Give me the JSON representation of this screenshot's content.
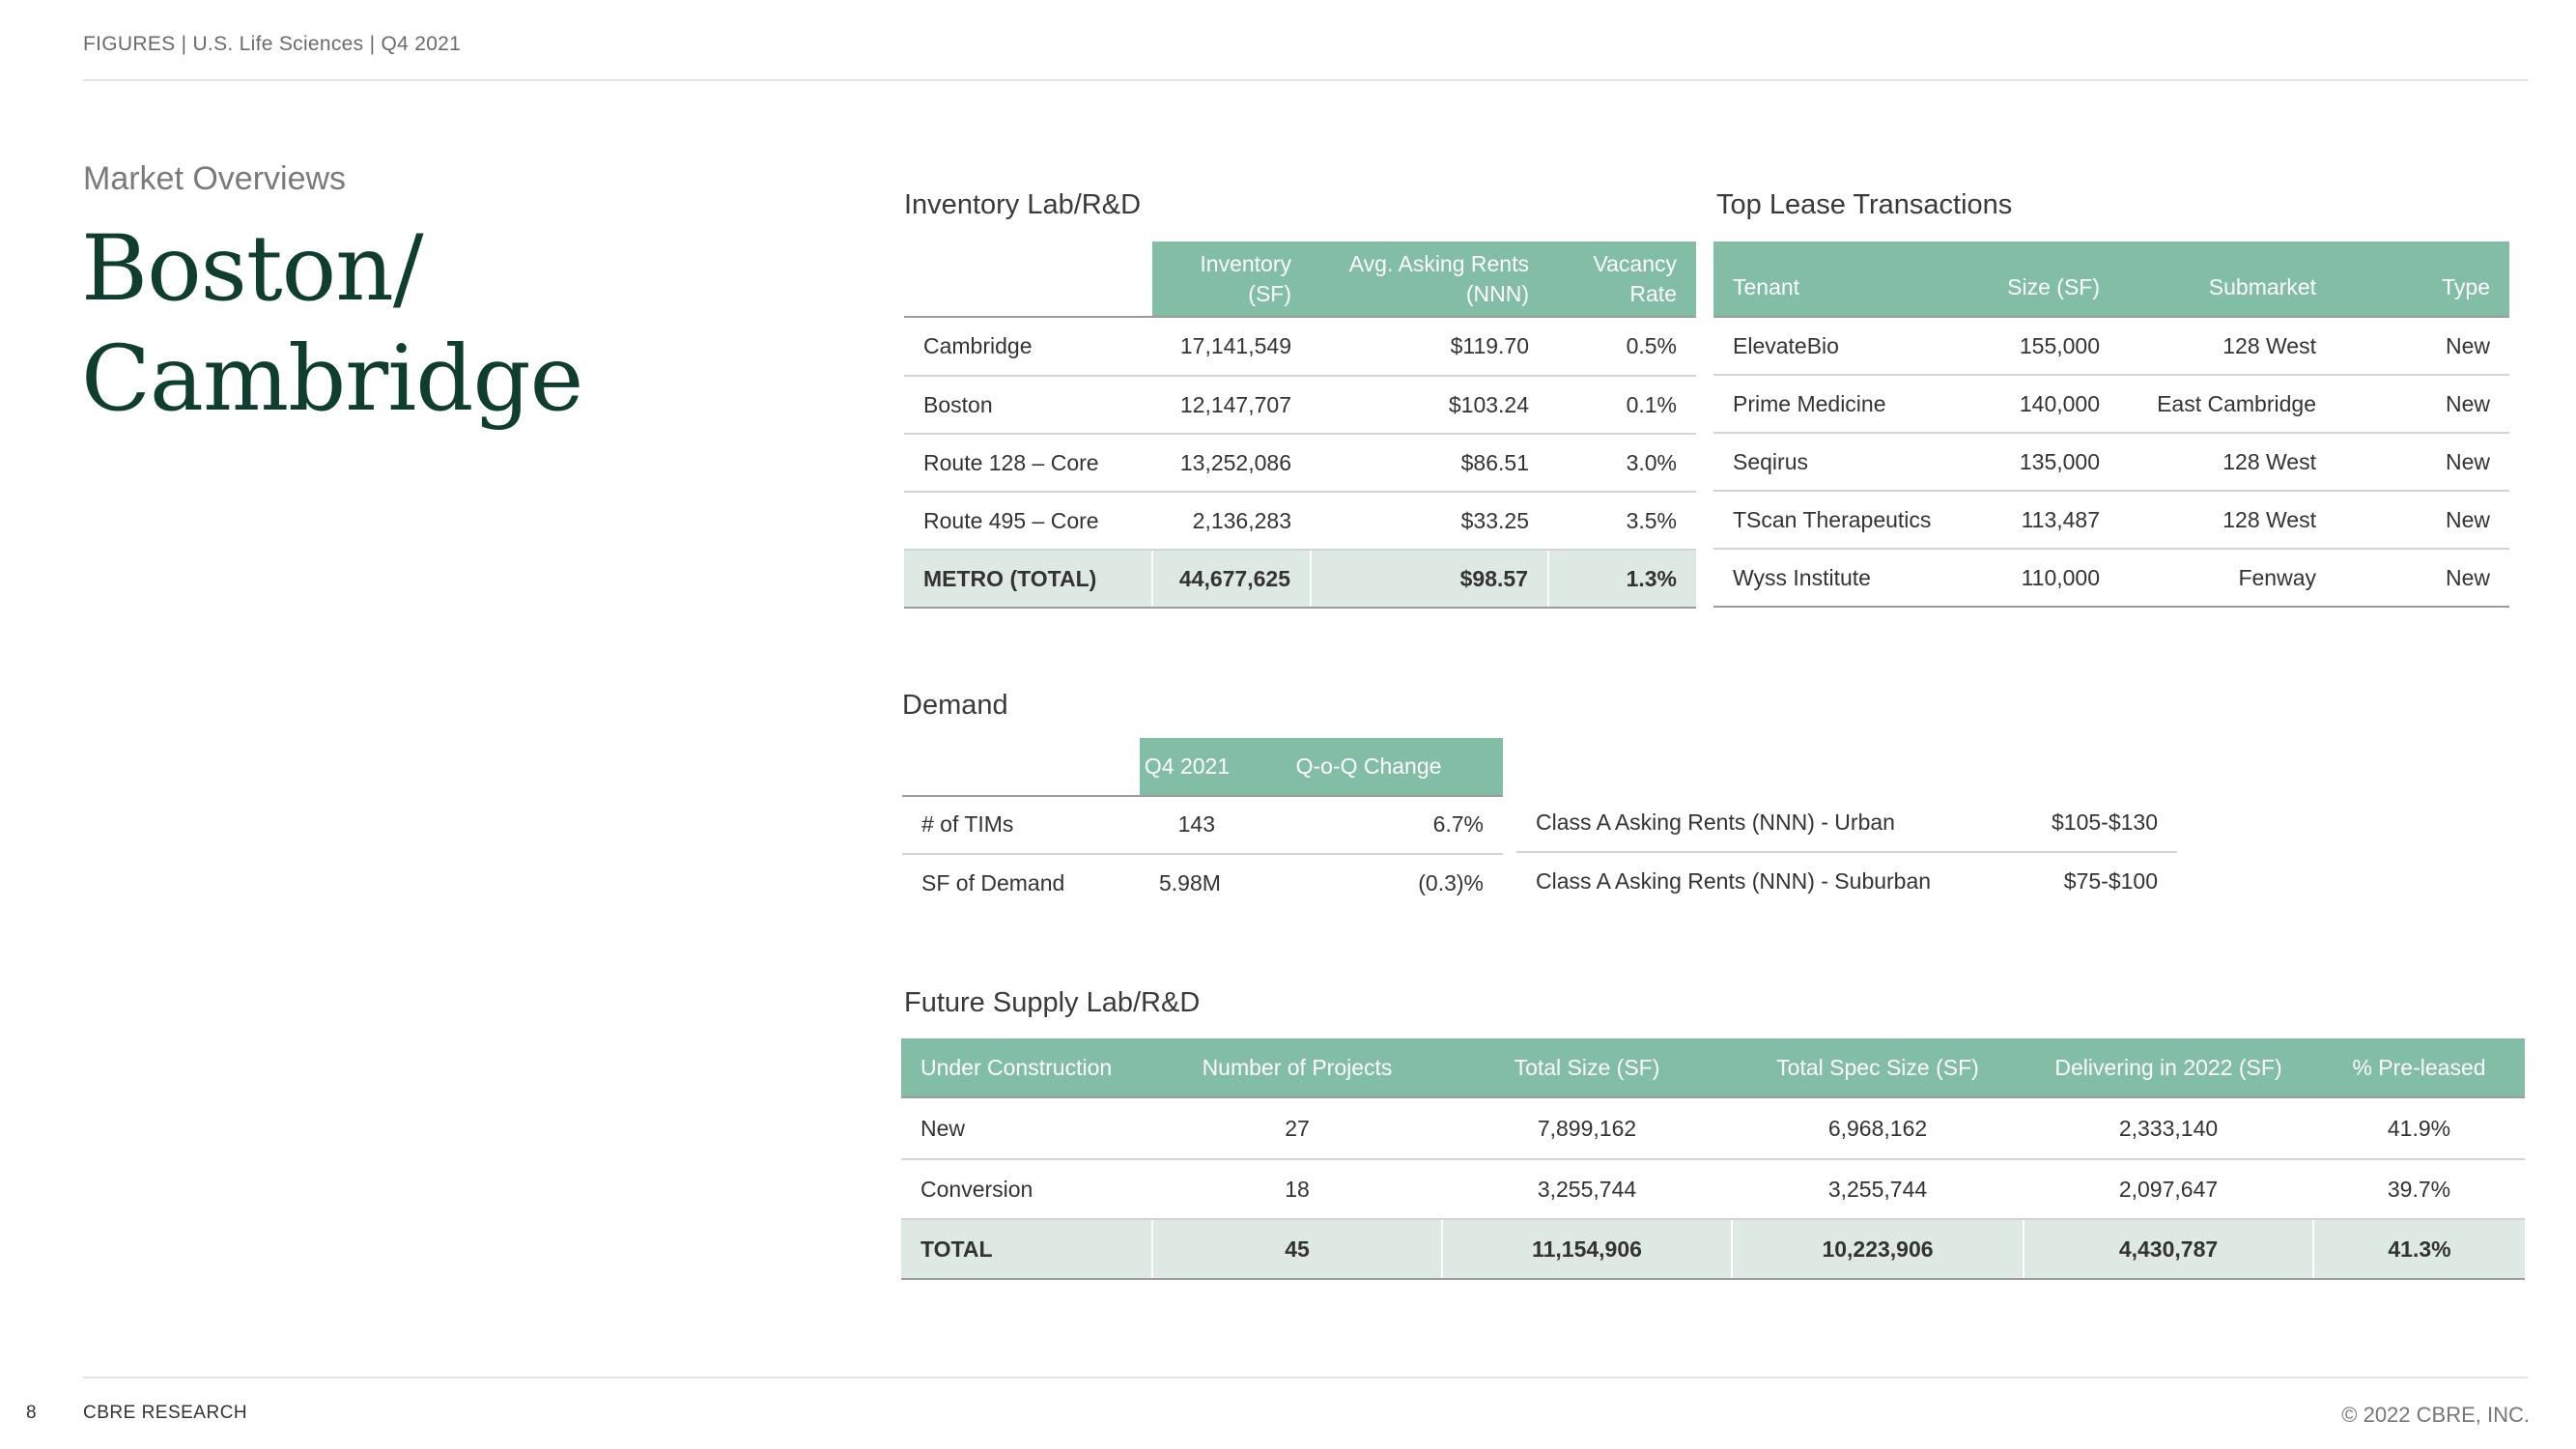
{
  "header": {
    "text": "FIGURES  |  U.S. Life Sciences  |  Q4 2021"
  },
  "page": {
    "kicker": "Market Overviews",
    "title_line1": "Boston/",
    "title_line2": "Cambridge"
  },
  "inventory": {
    "title": "Inventory Lab/R&D",
    "headers": [
      "",
      "Inventory (SF)",
      "Avg. Asking Rents (NNN)",
      "Vacancy Rate"
    ],
    "rows": [
      [
        "Cambridge",
        "17,141,549",
        "$119.70",
        "0.5%"
      ],
      [
        "Boston",
        "12,147,707",
        "$103.24",
        "0.1%"
      ],
      [
        "Route 128 – Core",
        "13,252,086",
        "$86.51",
        "3.0%"
      ],
      [
        "Route 495 – Core",
        "2,136,283",
        "$33.25",
        "3.5%"
      ]
    ],
    "total": [
      "METRO (TOTAL)",
      "44,677,625",
      "$98.57",
      "1.3%"
    ]
  },
  "leases": {
    "title": "Top Lease Transactions",
    "headers": [
      "Tenant",
      "Size (SF)",
      "Submarket",
      "Type"
    ],
    "rows": [
      [
        "ElevateBio",
        "155,000",
        "128 West",
        "New"
      ],
      [
        "Prime Medicine",
        "140,000",
        "East Cambridge",
        "New"
      ],
      [
        "Seqirus",
        "135,000",
        "128 West",
        "New"
      ],
      [
        "TScan Therapeutics",
        "113,487",
        "128 West",
        "New"
      ],
      [
        "Wyss Institute",
        "110,000",
        "Fenway",
        "New"
      ]
    ]
  },
  "demand": {
    "title": "Demand",
    "headers": [
      "",
      "Q4 2021",
      "Q-o-Q Change"
    ],
    "rows": [
      [
        "# of TIMs",
        "143",
        "6.7%"
      ],
      [
        "SF of Demand",
        "5.98M",
        "(0.3)%"
      ]
    ]
  },
  "rents": {
    "rows": [
      [
        "Class A Asking Rents (NNN) - Urban",
        "$105-$130"
      ],
      [
        "Class A Asking Rents (NNN) - Suburban",
        "$75-$100"
      ]
    ]
  },
  "supply": {
    "title": "Future Supply Lab/R&D",
    "headers": [
      "Under Construction",
      "Number of Projects",
      "Total Size (SF)",
      "Total Spec Size (SF)",
      "Delivering in 2022 (SF)",
      "% Pre-leased"
    ],
    "rows": [
      [
        "New",
        "27",
        "7,899,162",
        "6,968,162",
        "2,333,140",
        "41.9%"
      ],
      [
        "Conversion",
        "18",
        "3,255,744",
        "3,255,744",
        "2,097,647",
        "39.7%"
      ]
    ],
    "total": [
      "TOTAL",
      "45",
      "11,154,906",
      "10,223,906",
      "4,430,787",
      "41.3%"
    ]
  },
  "footer": {
    "page_number": "8",
    "brand": "CBRE RESEARCH",
    "copyright": "© 2022 CBRE, INC."
  },
  "colors": {
    "header_fill": "#82bea5",
    "total_fill": "#dfe9e3",
    "title_color": "#0f3d2e"
  }
}
